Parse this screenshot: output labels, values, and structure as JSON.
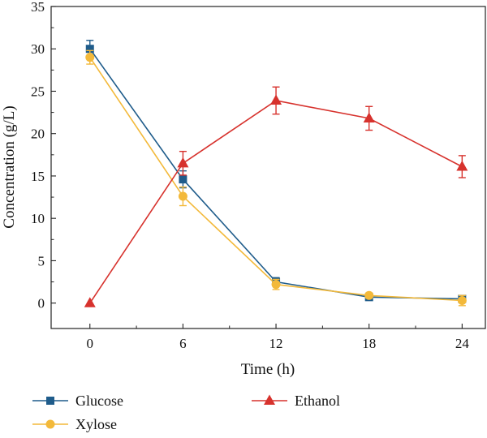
{
  "chart_data": {
    "type": "line",
    "xlabel": "Time (h)",
    "ylabel": "Concentration (g/L)",
    "x": [
      0,
      6,
      12,
      18,
      24
    ],
    "xticks": [
      "0",
      "6",
      "12",
      "18",
      "24"
    ],
    "yticks": [
      "0",
      "5",
      "10",
      "15",
      "20",
      "25",
      "30",
      "35"
    ],
    "xlim": [
      -2.5,
      25.5
    ],
    "ylim": [
      -3,
      35
    ],
    "grid": false,
    "legend_position": "bottom",
    "series": [
      {
        "name": "Glucose",
        "marker": "square",
        "color": "#1f5c8b",
        "values": [
          30.0,
          14.6,
          2.5,
          0.7,
          0.5
        ],
        "errors": [
          1.0,
          1.0,
          0.5,
          0.3,
          0.3
        ]
      },
      {
        "name": "Xylose",
        "marker": "circle",
        "color": "#f3b93a",
        "values": [
          29.0,
          12.6,
          2.2,
          0.9,
          0.3
        ],
        "errors": [
          0.8,
          1.1,
          0.6,
          0.3,
          0.6
        ]
      },
      {
        "name": "Ethanol",
        "marker": "triangle",
        "color": "#d7322d",
        "values": [
          0.0,
          16.5,
          23.9,
          21.8,
          16.1
        ],
        "errors": [
          0.0,
          1.4,
          1.6,
          1.4,
          1.3
        ]
      }
    ]
  }
}
